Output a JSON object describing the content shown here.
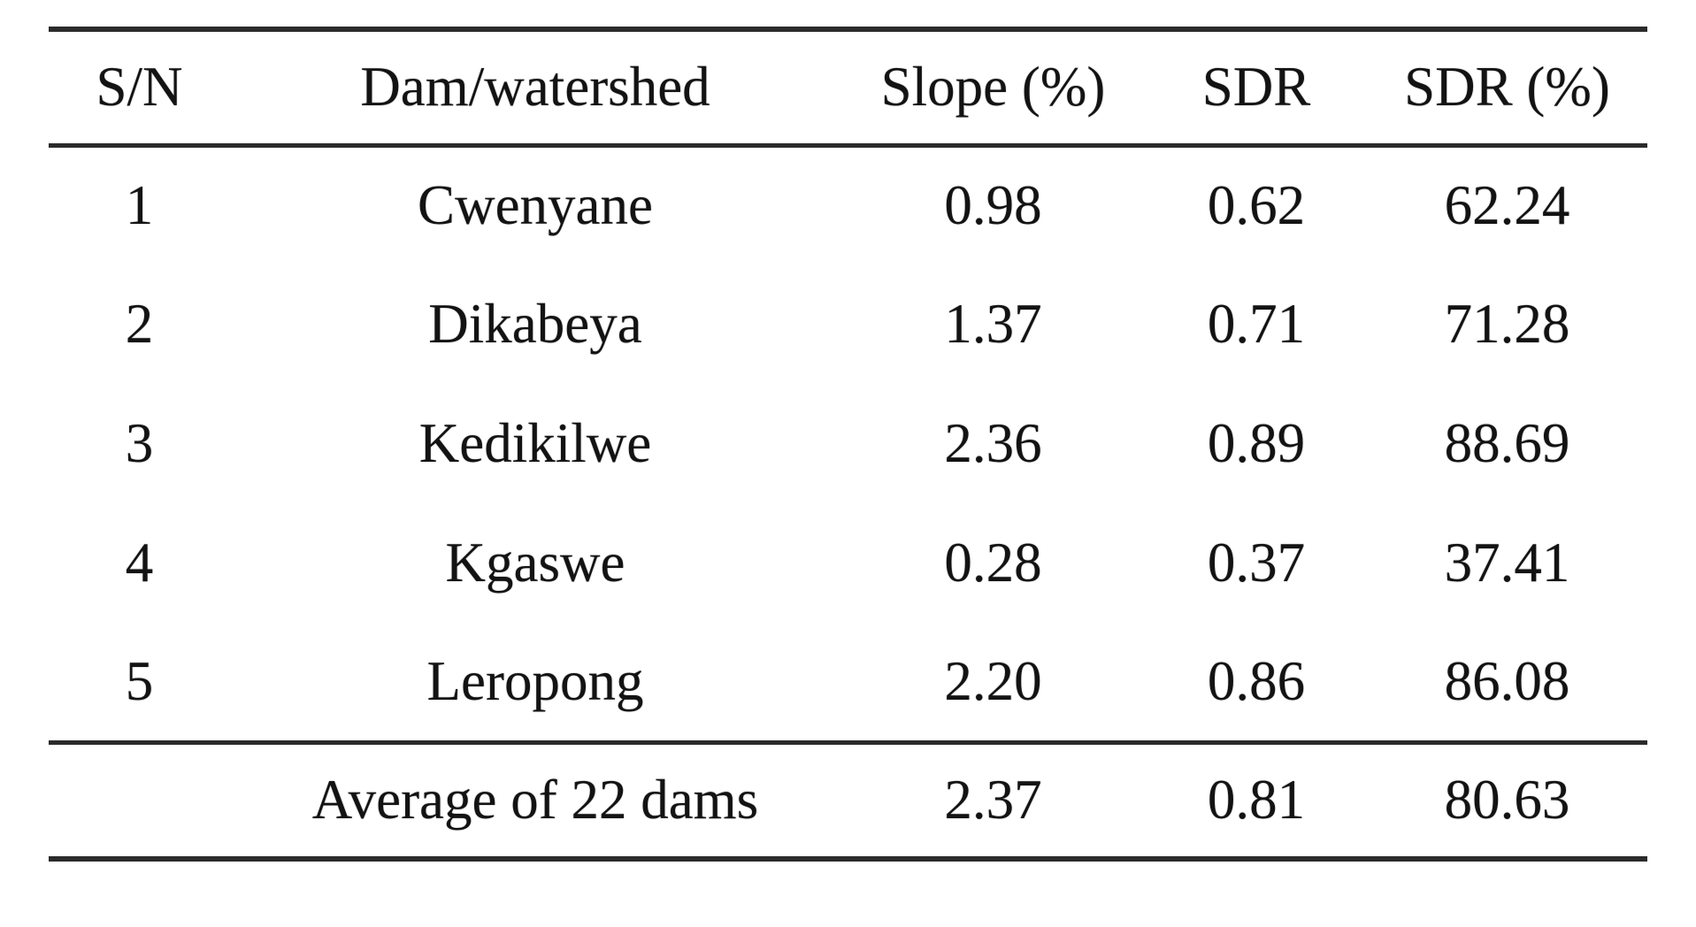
{
  "colors": {
    "background": "#ffffff",
    "rule": "#2b2b2b",
    "text": "#131313"
  },
  "table": {
    "columns": [
      "S/N",
      "Dam/watershed",
      "Slope (%)",
      "SDR",
      "SDR (%)"
    ],
    "rows": [
      [
        "1",
        "Cwenyane",
        "0.98",
        "0.62",
        "62.24"
      ],
      [
        "2",
        "Dikabeya",
        "1.37",
        "0.71",
        "71.28"
      ],
      [
        "3",
        "Kedikilwe",
        "2.36",
        "0.89",
        "88.69"
      ],
      [
        "4",
        "Kgaswe",
        "0.28",
        "0.37",
        "37.41"
      ],
      [
        "5",
        "Leropong",
        "2.20",
        "0.86",
        "86.08"
      ]
    ],
    "summary": [
      "",
      "Average of 22 dams",
      "2.37",
      "0.81",
      "80.63"
    ]
  }
}
